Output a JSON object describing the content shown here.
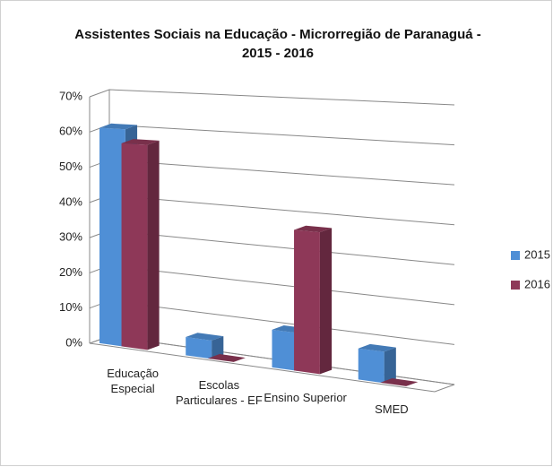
{
  "chart_data": {
    "type": "bar3d",
    "title": "Assistentes Sociais na Educação - Microrregião de Paranaguá - 2015 - 2016",
    "categories": [
      "Educação Especial",
      "Escolas Particulares - EF",
      "Ensino Superior",
      "SMED"
    ],
    "series": [
      {
        "name": "2015",
        "color": "#4f8fd6",
        "values": [
          61,
          5,
          10,
          8
        ]
      },
      {
        "name": "2016",
        "color": "#8e3858",
        "values": [
          57,
          0,
          37,
          0
        ]
      }
    ],
    "ylim": [
      0,
      70
    ],
    "yticks": [
      {
        "value": 0,
        "label": "0%"
      },
      {
        "value": 10,
        "label": "10%"
      },
      {
        "value": 20,
        "label": "20%"
      },
      {
        "value": 30,
        "label": "30%"
      },
      {
        "value": 40,
        "label": "40%"
      },
      {
        "value": 50,
        "label": "50%"
      },
      {
        "value": 60,
        "label": "60%"
      },
      {
        "value": 70,
        "label": "70%"
      }
    ],
    "grid": true,
    "legend": "right"
  }
}
